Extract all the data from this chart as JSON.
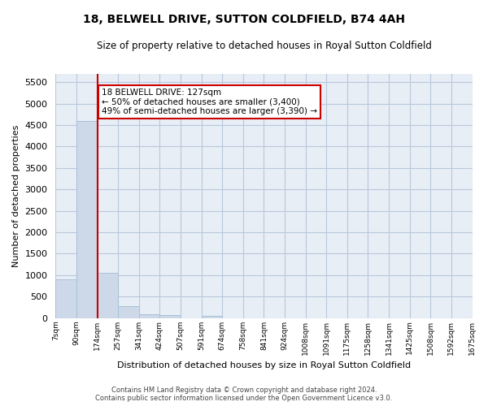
{
  "title": "18, BELWELL DRIVE, SUTTON COLDFIELD, B74 4AH",
  "subtitle": "Size of property relative to detached houses in Royal Sutton Coldfield",
  "xlabel": "Distribution of detached houses by size in Royal Sutton Coldfield",
  "ylabel": "Number of detached properties",
  "bar_color": "#cdd9e8",
  "bar_edgecolor": "#a8c0d8",
  "bar_values": [
    900,
    4600,
    1055,
    285,
    90,
    80,
    0,
    60,
    0,
    0,
    0,
    0,
    0,
    0,
    0,
    0,
    0,
    0,
    0,
    0
  ],
  "x_labels": [
    "7sqm",
    "90sqm",
    "174sqm",
    "257sqm",
    "341sqm",
    "424sqm",
    "507sqm",
    "591sqm",
    "674sqm",
    "758sqm",
    "841sqm",
    "924sqm",
    "1008sqm",
    "1091sqm",
    "1175sqm",
    "1258sqm",
    "1341sqm",
    "1425sqm",
    "1508sqm",
    "1592sqm",
    "1675sqm"
  ],
  "ylim": [
    0,
    5700
  ],
  "yticks": [
    0,
    500,
    1000,
    1500,
    2000,
    2500,
    3000,
    3500,
    4000,
    4500,
    5000,
    5500
  ],
  "grid_color": "#b8c8dc",
  "bg_color": "#e8eef5",
  "red_line_x": 2,
  "annotation_text": "18 BELWELL DRIVE: 127sqm\n← 50% of detached houses are smaller (3,400)\n49% of semi-detached houses are larger (3,390) →",
  "annotation_box_color": "#ffffff",
  "annotation_border_color": "#cc0000",
  "footer_line1": "Contains HM Land Registry data © Crown copyright and database right 2024.",
  "footer_line2": "Contains public sector information licensed under the Open Government Licence v3.0."
}
